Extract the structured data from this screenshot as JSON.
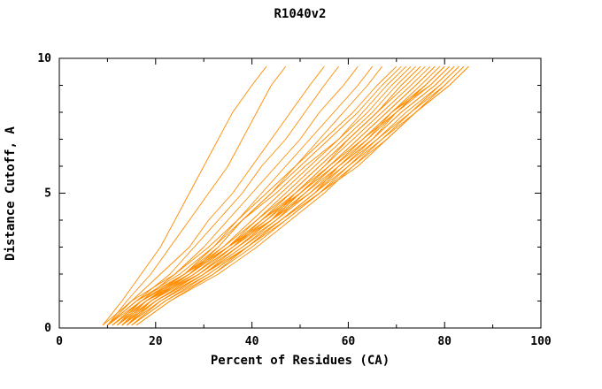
{
  "title": "R1040v2",
  "chart_data": {
    "type": "line",
    "title": "R1040v2",
    "xlabel": "Percent of Residues (CA)",
    "ylabel": "Distance Cutoff, A",
    "xlim": [
      0,
      100
    ],
    "ylim": [
      0,
      10
    ],
    "x_major_ticks": [
      0,
      20,
      40,
      60,
      80,
      100
    ],
    "x_minor_ticks": [
      10,
      30,
      50,
      70,
      90
    ],
    "y_major_ticks": [
      0,
      5,
      10
    ],
    "y_minor_ticks": [
      1,
      2,
      3,
      4,
      6,
      7,
      8,
      9
    ],
    "grid": false,
    "legend": "none",
    "background": "#ffffff",
    "frame_color": "#000000",
    "line_color": "#ff8c00",
    "y_samples": [
      0.1,
      1,
      2,
      3,
      4,
      5,
      6,
      7,
      8,
      9,
      9.7
    ],
    "series": [
      [
        9,
        15,
        24,
        31,
        37,
        43,
        49,
        55,
        61,
        66,
        70
      ],
      [
        10,
        16,
        25,
        32,
        38,
        44,
        50,
        56,
        62,
        67,
        71
      ],
      [
        11,
        17,
        26,
        33,
        38,
        45,
        51,
        58,
        63,
        68,
        72
      ],
      [
        12,
        18,
        27,
        34,
        40,
        46,
        52,
        58,
        64,
        69,
        73
      ],
      [
        13,
        19,
        28,
        35,
        41,
        47,
        53,
        59,
        65,
        70,
        74
      ],
      [
        14,
        20,
        29,
        36,
        42,
        48,
        54,
        60,
        66,
        71,
        75
      ],
      [
        15,
        21,
        30,
        37,
        44,
        49,
        55,
        60,
        66,
        71,
        75
      ],
      [
        10,
        17,
        26,
        34,
        41,
        48,
        54,
        60,
        66,
        72,
        76
      ],
      [
        11,
        18,
        27,
        35,
        42,
        49,
        55,
        61,
        67,
        73,
        77
      ],
      [
        12,
        19,
        28,
        36,
        43,
        49,
        56,
        62,
        68,
        74,
        78
      ],
      [
        13,
        20,
        29,
        37,
        44,
        50,
        56,
        62,
        68,
        74,
        78
      ],
      [
        14,
        21,
        30,
        38,
        45,
        51,
        57,
        63,
        69,
        75,
        79
      ],
      [
        15,
        22,
        31,
        39,
        46,
        53,
        58,
        64,
        70,
        76,
        80
      ],
      [
        16,
        23,
        32,
        39,
        46,
        53,
        59,
        65,
        70,
        76,
        80
      ],
      [
        10,
        16,
        26,
        35,
        42,
        50,
        57,
        63,
        70,
        77,
        81
      ],
      [
        11,
        17,
        27,
        35,
        44,
        50,
        57,
        64,
        69,
        77,
        81
      ],
      [
        12,
        18,
        28,
        36,
        44,
        51,
        58,
        65,
        71,
        78,
        82
      ],
      [
        13,
        19,
        29,
        37,
        45,
        52,
        58,
        65,
        71,
        78,
        82
      ],
      [
        14,
        20,
        30,
        38,
        46,
        53,
        60,
        66,
        72,
        79,
        83
      ],
      [
        15,
        22,
        32,
        40,
        47,
        54,
        60,
        67,
        73,
        79,
        83
      ],
      [
        16,
        23,
        33,
        41,
        48,
        55,
        61,
        68,
        74,
        80,
        84
      ],
      [
        12,
        18,
        29,
        37,
        44,
        52,
        59,
        66,
        73,
        80,
        84
      ],
      [
        13,
        20,
        30,
        39,
        46,
        54,
        61,
        67,
        74,
        81,
        85
      ],
      [
        14,
        21,
        31,
        39,
        47,
        54,
        62,
        68,
        74,
        81,
        85
      ],
      [
        11,
        17,
        27,
        35,
        43,
        50,
        56,
        63,
        69,
        76,
        80
      ],
      [
        10,
        16,
        23,
        28,
        33,
        38,
        42,
        47,
        51,
        55,
        58
      ],
      [
        12,
        17,
        24,
        30,
        35,
        40,
        45,
        50,
        54,
        59,
        62
      ],
      [
        13,
        18,
        26,
        32,
        37,
        42,
        47,
        52,
        57,
        62,
        65
      ],
      [
        14,
        19,
        27,
        33,
        38,
        44,
        49,
        54,
        59,
        64,
        67
      ],
      [
        9,
        13,
        17,
        21,
        24,
        27,
        30,
        33,
        36,
        40,
        43
      ],
      [
        10,
        14,
        19,
        23,
        27,
        31,
        35,
        38,
        41,
        44,
        47
      ],
      [
        10,
        15,
        21,
        27,
        31,
        36,
        40,
        44,
        48,
        52,
        55
      ]
    ]
  }
}
